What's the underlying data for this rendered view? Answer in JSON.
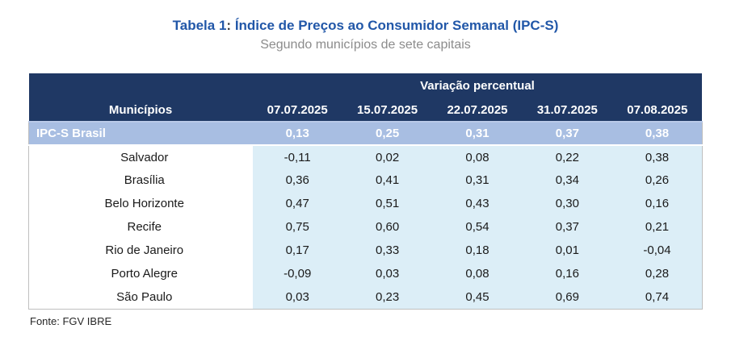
{
  "header": {
    "title_prefix": "Tabela 1",
    "title_colon": ": ",
    "title_main": "Índice de Preços ao Consumidor Semanal (IPC-S)",
    "subtitle": "Segundo municípios de sete capitais"
  },
  "table": {
    "group_header": "Variação percentual",
    "row_header": "Municípios",
    "columns": [
      "07.07.2025",
      "15.07.2025",
      "22.07.2025",
      "31.07.2025",
      "07.08.2025"
    ],
    "rows": [
      {
        "name": "IPC-S Brasil",
        "highlight": true,
        "values": [
          "0,13",
          "0,25",
          "0,31",
          "0,37",
          "0,38"
        ]
      },
      {
        "name": "Salvador",
        "highlight": false,
        "values": [
          "-0,11",
          "0,02",
          "0,08",
          "0,22",
          "0,38"
        ]
      },
      {
        "name": "Brasília",
        "highlight": false,
        "values": [
          "0,36",
          "0,41",
          "0,31",
          "0,34",
          "0,26"
        ]
      },
      {
        "name": "Belo Horizonte",
        "highlight": false,
        "values": [
          "0,47",
          "0,51",
          "0,43",
          "0,30",
          "0,16"
        ]
      },
      {
        "name": "Recife",
        "highlight": false,
        "values": [
          "0,75",
          "0,60",
          "0,54",
          "0,37",
          "0,21"
        ]
      },
      {
        "name": "Rio de Janeiro",
        "highlight": false,
        "values": [
          "0,17",
          "0,33",
          "0,18",
          "0,01",
          "-0,04"
        ]
      },
      {
        "name": "Porto Alegre",
        "highlight": false,
        "values": [
          "-0,09",
          "0,03",
          "0,08",
          "0,16",
          "0,28"
        ]
      },
      {
        "name": "São Paulo",
        "highlight": false,
        "values": [
          "0,03",
          "0,23",
          "0,45",
          "0,69",
          "0,74"
        ]
      }
    ]
  },
  "footer": {
    "source": "Fonte: FGV IBRE"
  },
  "colors": {
    "header_navy": "#1f3864",
    "highlight_row_blue": "#a8bee2",
    "data_cell_blue": "#dceef7",
    "title_blue": "#2157a8",
    "subtitle_gray": "#8c8c8c",
    "border_gray": "#bfbfbf"
  },
  "chart_data": {
    "type": "table",
    "title": "Tabela 1: Índice de Preços ao Consumidor Semanal (IPC-S)",
    "subtitle": "Segundo municípios de sete capitais",
    "group_header": "Variação percentual",
    "columns": [
      "Municípios",
      "07.07.2025",
      "15.07.2025",
      "22.07.2025",
      "31.07.2025",
      "07.08.2025"
    ],
    "rows": [
      [
        "IPC-S Brasil",
        0.13,
        0.25,
        0.31,
        0.37,
        0.38
      ],
      [
        "Salvador",
        -0.11,
        0.02,
        0.08,
        0.22,
        0.38
      ],
      [
        "Brasília",
        0.36,
        0.41,
        0.31,
        0.34,
        0.26
      ],
      [
        "Belo Horizonte",
        0.47,
        0.51,
        0.43,
        0.3,
        0.16
      ],
      [
        "Recife",
        0.75,
        0.6,
        0.54,
        0.37,
        0.21
      ],
      [
        "Rio de Janeiro",
        0.17,
        0.33,
        0.18,
        0.01,
        -0.04
      ],
      [
        "Porto Alegre",
        -0.09,
        0.03,
        0.08,
        0.16,
        0.28
      ],
      [
        "São Paulo",
        0.03,
        0.23,
        0.45,
        0.69,
        0.74
      ]
    ],
    "source": "Fonte: FGV IBRE"
  }
}
